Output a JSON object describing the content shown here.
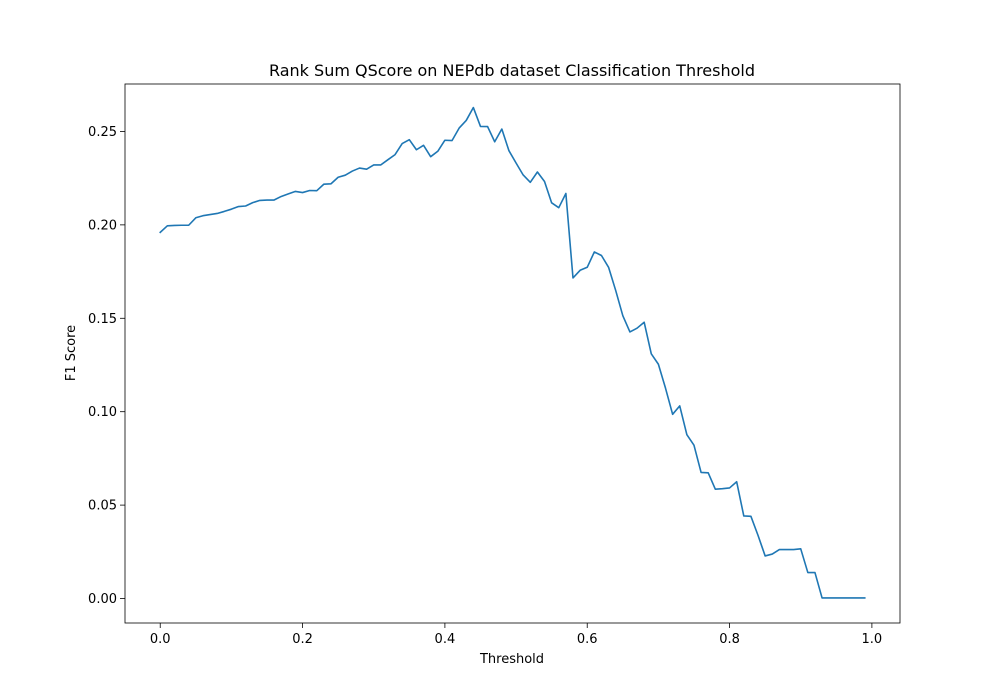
{
  "chart_data": {
    "type": "line",
    "title": "Rank Sum QScore on NEPdb dataset Classification Threshold",
    "xlabel": "Threshold",
    "ylabel": "F1 Score",
    "xlim": [
      -0.0495,
      1.0395
    ],
    "ylim": [
      -0.0131,
      0.2754
    ],
    "xticks": [
      0.0,
      0.2,
      0.4,
      0.6,
      0.8,
      1.0
    ],
    "xtick_labels": [
      "0.0",
      "0.2",
      "0.4",
      "0.6",
      "0.8",
      "1.0"
    ],
    "yticks": [
      0.0,
      0.05,
      0.1,
      0.15,
      0.2,
      0.25
    ],
    "ytick_labels": [
      "0.00",
      "0.05",
      "0.10",
      "0.15",
      "0.20",
      "0.25"
    ],
    "grid": false,
    "legend": "none",
    "line_color": "#1f77b4",
    "series": [
      {
        "x": [
          0.0,
          0.01,
          0.02,
          0.03,
          0.04,
          0.05,
          0.06,
          0.07,
          0.08,
          0.09,
          0.1,
          0.11,
          0.12,
          0.13,
          0.14,
          0.15,
          0.16,
          0.17,
          0.18,
          0.19,
          0.2,
          0.21,
          0.22,
          0.23,
          0.24,
          0.25,
          0.26,
          0.27,
          0.28,
          0.29,
          0.3,
          0.31,
          0.32,
          0.33,
          0.34,
          0.35,
          0.36,
          0.37,
          0.38,
          0.39,
          0.4,
          0.41,
          0.42,
          0.43,
          0.44,
          0.45,
          0.46,
          0.47,
          0.48,
          0.49,
          0.5,
          0.51,
          0.52,
          0.53,
          0.54,
          0.55,
          0.56,
          0.57,
          0.58,
          0.59,
          0.6,
          0.61,
          0.62,
          0.63,
          0.64,
          0.65,
          0.66,
          0.67,
          0.68,
          0.69,
          0.7,
          0.71,
          0.72,
          0.73,
          0.74,
          0.75,
          0.76,
          0.77,
          0.78,
          0.79,
          0.8,
          0.81,
          0.82,
          0.83,
          0.84,
          0.85,
          0.86,
          0.87,
          0.88,
          0.89,
          0.9,
          0.91,
          0.92,
          0.93,
          0.94,
          0.95,
          0.96,
          0.97,
          0.98,
          0.99
        ],
        "values": [
          0.196,
          0.1995,
          0.1997,
          0.1998,
          0.1998,
          0.2038,
          0.2049,
          0.2055,
          0.2061,
          0.2072,
          0.2084,
          0.2098,
          0.2101,
          0.2119,
          0.2131,
          0.2133,
          0.2133,
          0.2152,
          0.2166,
          0.2179,
          0.2173,
          0.2184,
          0.2183,
          0.2218,
          0.222,
          0.2255,
          0.2266,
          0.2288,
          0.2304,
          0.2298,
          0.2321,
          0.2321,
          0.2349,
          0.2376,
          0.2435,
          0.2456,
          0.2402,
          0.2426,
          0.2365,
          0.2394,
          0.2453,
          0.2451,
          0.2518,
          0.2559,
          0.2628,
          0.2527,
          0.2526,
          0.2445,
          0.2513,
          0.2397,
          0.2331,
          0.2267,
          0.2228,
          0.2283,
          0.2232,
          0.2118,
          0.2092,
          0.2168,
          0.1716,
          0.1757,
          0.1773,
          0.1855,
          0.1836,
          0.1773,
          0.1649,
          0.1514,
          0.1427,
          0.1447,
          0.1479,
          0.131,
          0.1254,
          0.1126,
          0.0986,
          0.1031,
          0.0877,
          0.0821,
          0.0675,
          0.0673,
          0.0585,
          0.0588,
          0.0592,
          0.0625,
          0.0442,
          0.044,
          0.0338,
          0.0228,
          0.0238,
          0.0262,
          0.0262,
          0.0262,
          0.0266,
          0.0139,
          0.0139,
          0.0003,
          0.0003,
          0.0003,
          0.0003,
          0.0003,
          0.0003,
          0.0003
        ]
      }
    ]
  }
}
